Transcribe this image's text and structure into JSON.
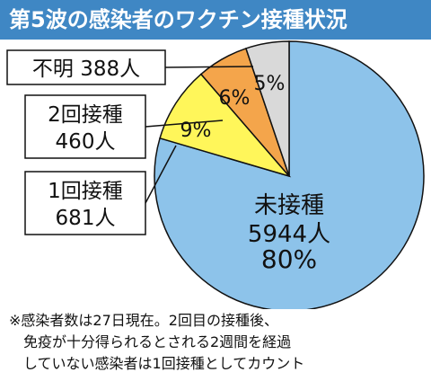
{
  "title": "第5波の感染者のワクチン接種状況",
  "chart_data": {
    "type": "pie",
    "title": "第5波の感染者のワクチン接種状況",
    "unit": "人",
    "slices": [
      {
        "name": "未接種",
        "value": 5944,
        "percent": 80,
        "percent_label": "80%",
        "color": "#8dc3ea",
        "label_lines": [
          "未接種",
          "5944人"
        ]
      },
      {
        "name": "1回接種",
        "value": 681,
        "percent": 9,
        "percent_label": "9%",
        "color": "#fff65a",
        "label_lines": [
          "1回接種",
          "681人"
        ]
      },
      {
        "name": "2回接種",
        "value": 460,
        "percent": 6,
        "percent_label": "6%",
        "color": "#f4a54b",
        "label_lines": [
          "2回接種",
          "460人"
        ]
      },
      {
        "name": "不明",
        "value": 388,
        "percent": 5,
        "percent_label": "5%",
        "color": "#d9d9d9",
        "label_lines": [
          "不明 388人"
        ]
      }
    ]
  },
  "note_lines": [
    "※感染者数は27日現在。2回目の接種後、",
    "　免疫が十分得られるとされる2週間を経過",
    "　していない感染者は1回接種としてカウント"
  ]
}
